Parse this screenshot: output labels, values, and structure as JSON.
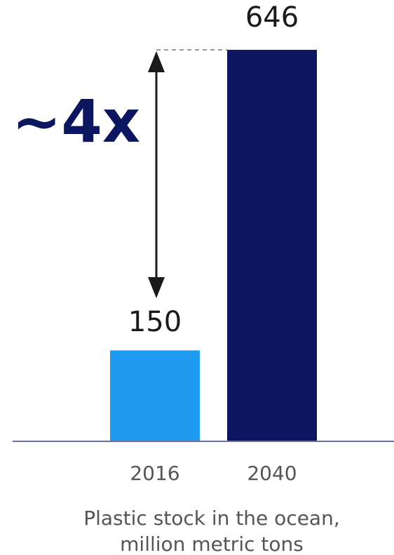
{
  "chart_data": {
    "type": "bar",
    "categories": [
      "2016",
      "2040"
    ],
    "values": [
      150,
      646
    ],
    "value_labels": [
      "150",
      "646"
    ],
    "bar_colors": [
      "#1E9BF0",
      "#0B1560"
    ],
    "caption_lines": [
      "Plastic stock in the ocean,",
      "million metric tons"
    ],
    "annotation": {
      "text": "~4x",
      "color": "#0B1560"
    },
    "title": "",
    "xlabel": "",
    "ylabel": "",
    "grid": false,
    "legend": "none"
  },
  "colors": {
    "axis": "#6B6FA8",
    "arrow": "#1a1a1a",
    "guide": "#999999"
  }
}
